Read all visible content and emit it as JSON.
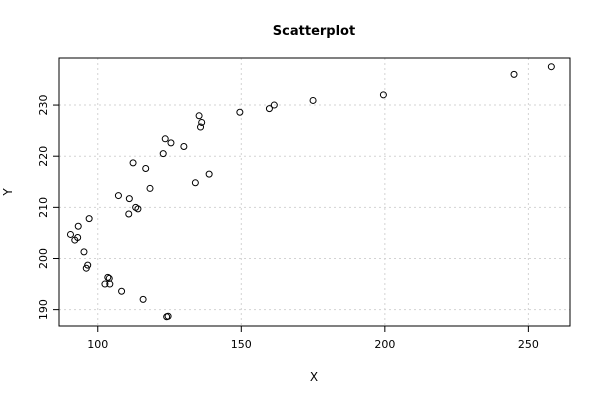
{
  "chart_data": {
    "type": "scatter",
    "title": "Scatterplot",
    "xlabel": "X",
    "ylabel": "Y",
    "xlim": [
      86.5,
      264.5
    ],
    "ylim": [
      186.8,
      239.2
    ],
    "xticks": [
      100,
      150,
      200,
      250
    ],
    "yticks": [
      190,
      200,
      210,
      220,
      230
    ],
    "grid": true,
    "points": [
      {
        "x": 90.5,
        "y": 204.7
      },
      {
        "x": 92.0,
        "y": 203.6
      },
      {
        "x": 93.0,
        "y": 204.1
      },
      {
        "x": 93.2,
        "y": 206.3
      },
      {
        "x": 95.2,
        "y": 201.3
      },
      {
        "x": 96.0,
        "y": 198.1
      },
      {
        "x": 96.5,
        "y": 198.7
      },
      {
        "x": 97.0,
        "y": 207.8
      },
      {
        "x": 102.5,
        "y": 195.0
      },
      {
        "x": 103.5,
        "y": 196.3
      },
      {
        "x": 104.0,
        "y": 196.1
      },
      {
        "x": 104.2,
        "y": 195.0
      },
      {
        "x": 107.2,
        "y": 212.3
      },
      {
        "x": 108.3,
        "y": 193.6
      },
      {
        "x": 110.8,
        "y": 208.7
      },
      {
        "x": 111.0,
        "y": 211.7
      },
      {
        "x": 112.3,
        "y": 218.7
      },
      {
        "x": 113.2,
        "y": 210.0
      },
      {
        "x": 114.0,
        "y": 209.7
      },
      {
        "x": 115.8,
        "y": 192.0
      },
      {
        "x": 116.7,
        "y": 217.6
      },
      {
        "x": 118.2,
        "y": 213.7
      },
      {
        "x": 122.8,
        "y": 220.5
      },
      {
        "x": 123.5,
        "y": 223.4
      },
      {
        "x": 124.0,
        "y": 188.6
      },
      {
        "x": 124.5,
        "y": 188.7
      },
      {
        "x": 125.5,
        "y": 222.6
      },
      {
        "x": 130.0,
        "y": 221.9
      },
      {
        "x": 134.0,
        "y": 214.8
      },
      {
        "x": 135.3,
        "y": 227.9
      },
      {
        "x": 135.8,
        "y": 225.7
      },
      {
        "x": 136.2,
        "y": 226.6
      },
      {
        "x": 138.8,
        "y": 216.5
      },
      {
        "x": 149.5,
        "y": 228.6
      },
      {
        "x": 159.8,
        "y": 229.3
      },
      {
        "x": 161.5,
        "y": 230.0
      },
      {
        "x": 175.0,
        "y": 230.9
      },
      {
        "x": 199.5,
        "y": 232.0
      },
      {
        "x": 245.0,
        "y": 236.0
      },
      {
        "x": 258.0,
        "y": 237.5
      }
    ]
  }
}
